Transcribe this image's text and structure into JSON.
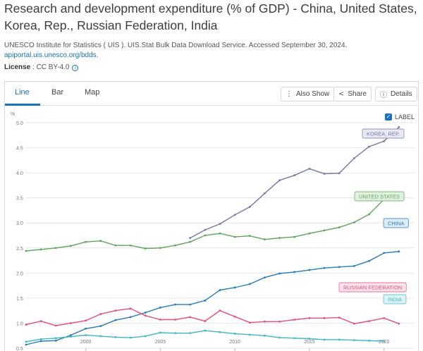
{
  "header": {
    "title": "Research and development expenditure (% of GDP) - China, United States, Korea, Rep., Russian Federation, India",
    "source": "UNESCO Institute for Statistics ( UIS ). UIS.Stat Bulk Data Download Service. Accessed September 30, 2024.",
    "source_link": "apiportal.uis.unesco.org/bdds.",
    "license_label": "License",
    "license_value": " : CC BY-4.0",
    "info_icon": "info-icon"
  },
  "tabs": [
    {
      "label": "Line",
      "active": true
    },
    {
      "label": "Bar",
      "active": false
    },
    {
      "label": "Map",
      "active": false
    }
  ],
  "toolbar": {
    "also_show": "Also Show",
    "share": "Share",
    "details": "Details"
  },
  "legend_toggle": {
    "label": "LABEL",
    "checked": true
  },
  "chart_data": {
    "type": "line",
    "ylabel": "%",
    "ylim": [
      0.5,
      5.0
    ],
    "xlim": [
      1996,
      2022
    ],
    "y_ticks": [
      "0.5",
      "1.0",
      "1.5",
      "2.0",
      "2.5",
      "3.0",
      "3.5",
      "4.0",
      "4.5",
      "5.0"
    ],
    "x_ticks": [
      "2000",
      "2005",
      "2010",
      "2015",
      "2020"
    ],
    "grid": true,
    "series": [
      {
        "name": "KOREA, REP.",
        "color": "#7578a0",
        "label_bg": "#e8e9f4",
        "x": [
          2007,
          2008,
          2009,
          2010,
          2011,
          2012,
          2013,
          2014,
          2015,
          2016,
          2017,
          2018,
          2019,
          2020,
          2021
        ],
        "y": [
          2.7,
          2.86,
          2.98,
          3.16,
          3.32,
          3.59,
          3.85,
          3.95,
          4.08,
          3.98,
          3.99,
          4.29,
          4.52,
          4.63,
          4.91
        ]
      },
      {
        "name": "UNITED STATES",
        "color": "#5fa35c",
        "label_bg": "#e2f1df",
        "x": [
          1996,
          1997,
          1998,
          1999,
          2000,
          2001,
          2002,
          2003,
          2004,
          2005,
          2006,
          2007,
          2008,
          2009,
          2010,
          2011,
          2012,
          2013,
          2014,
          2015,
          2016,
          2017,
          2018,
          2019,
          2020,
          2021
        ],
        "y": [
          2.44,
          2.47,
          2.5,
          2.54,
          2.62,
          2.64,
          2.55,
          2.55,
          2.49,
          2.5,
          2.55,
          2.62,
          2.75,
          2.79,
          2.72,
          2.74,
          2.67,
          2.7,
          2.72,
          2.79,
          2.85,
          2.91,
          3.01,
          3.17,
          3.47,
          3.46
        ]
      },
      {
        "name": "CHINA",
        "color": "#2a7ab8",
        "label_bg": "#dcebf6",
        "x": [
          1996,
          1997,
          1998,
          1999,
          2000,
          2001,
          2002,
          2003,
          2004,
          2005,
          2006,
          2007,
          2008,
          2009,
          2010,
          2011,
          2012,
          2013,
          2014,
          2015,
          2016,
          2017,
          2018,
          2019,
          2020,
          2021
        ],
        "y": [
          0.57,
          0.64,
          0.65,
          0.76,
          0.89,
          0.94,
          1.06,
          1.12,
          1.21,
          1.31,
          1.37,
          1.37,
          1.45,
          1.66,
          1.71,
          1.78,
          1.91,
          1.99,
          2.02,
          2.06,
          2.1,
          2.12,
          2.14,
          2.24,
          2.4,
          2.43
        ]
      },
      {
        "name": "RUSSIAN FEDERATION",
        "color": "#e04f82",
        "label_bg": "#fbe1ea",
        "x": [
          1996,
          1997,
          1998,
          1999,
          2000,
          2001,
          2002,
          2003,
          2004,
          2005,
          2006,
          2007,
          2008,
          2009,
          2010,
          2011,
          2012,
          2013,
          2014,
          2015,
          2016,
          2017,
          2018,
          2019,
          2020,
          2021
        ],
        "y": [
          0.97,
          1.04,
          0.95,
          1.0,
          1.05,
          1.18,
          1.25,
          1.29,
          1.15,
          1.07,
          1.07,
          1.12,
          1.04,
          1.25,
          1.13,
          1.01,
          1.03,
          1.03,
          1.07,
          1.1,
          1.1,
          1.11,
          0.99,
          1.04,
          1.1,
          0.99
        ]
      },
      {
        "name": "INDIA",
        "color": "#3fb5c2",
        "label_bg": "#dcf3f5",
        "x": [
          1996,
          1997,
          1998,
          1999,
          2000,
          2001,
          2002,
          2003,
          2004,
          2005,
          2006,
          2007,
          2008,
          2009,
          2010,
          2011,
          2012,
          2013,
          2014,
          2015,
          2016,
          2017,
          2018,
          2019,
          2020
        ],
        "y": [
          0.63,
          0.68,
          0.7,
          0.73,
          0.76,
          0.74,
          0.72,
          0.71,
          0.74,
          0.81,
          0.8,
          0.8,
          0.85,
          0.82,
          0.79,
          0.77,
          0.75,
          0.71,
          0.7,
          0.69,
          0.67,
          0.67,
          0.66,
          0.65,
          0.64
        ]
      }
    ]
  }
}
